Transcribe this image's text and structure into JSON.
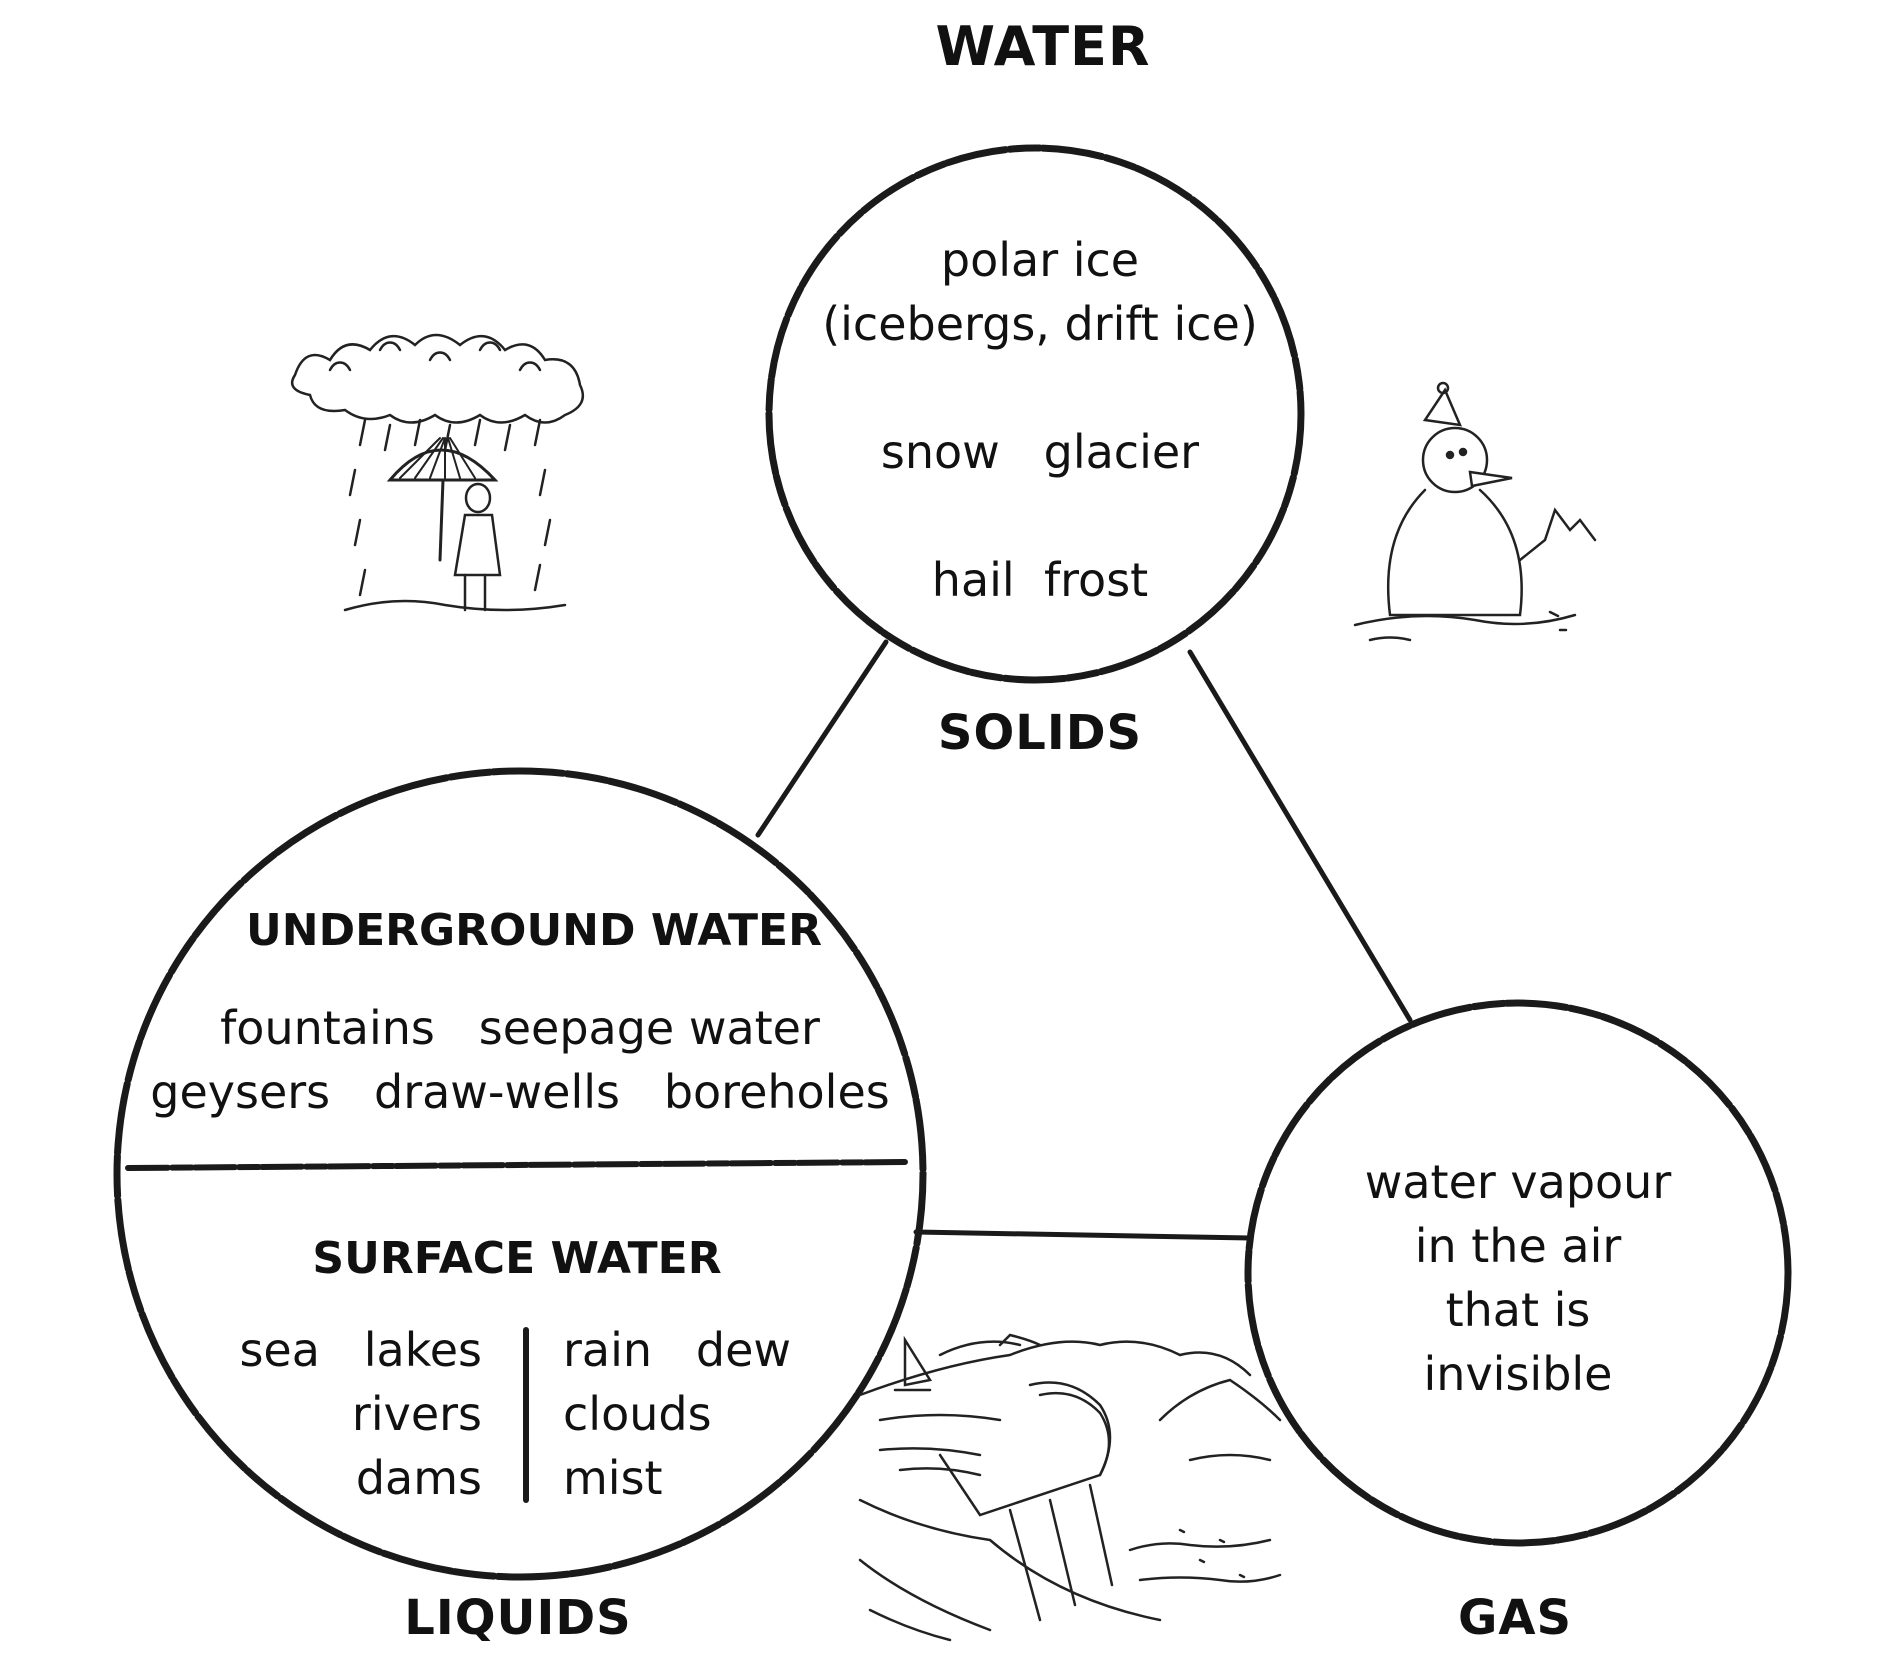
{
  "title": "WATER",
  "solids": {
    "label": "SOLIDS",
    "lines": [
      "polar ice",
      "(icebergs, drift ice)",
      "snow   glacier",
      "hail  frost"
    ]
  },
  "liquids": {
    "label": "LIQUIDS",
    "underground": {
      "heading": "UNDERGROUND WATER",
      "line1": "fountains   seepage water",
      "line2": "geysers   draw-wells   boreholes"
    },
    "surface": {
      "heading": "SURFACE WATER",
      "left": [
        "sea   lakes",
        "rivers",
        "dams"
      ],
      "right": [
        "rain   dew",
        "clouds",
        "mist"
      ]
    }
  },
  "gas": {
    "label": "GAS",
    "lines": [
      "water vapour",
      "in the air",
      "that is",
      "invisible"
    ]
  },
  "illustrations": [
    "rain-umbrella-person-icon",
    "snowman-icon",
    "dam-reservoir-icon"
  ],
  "colors": {
    "ink": "#111111",
    "background": "#ffffff"
  }
}
